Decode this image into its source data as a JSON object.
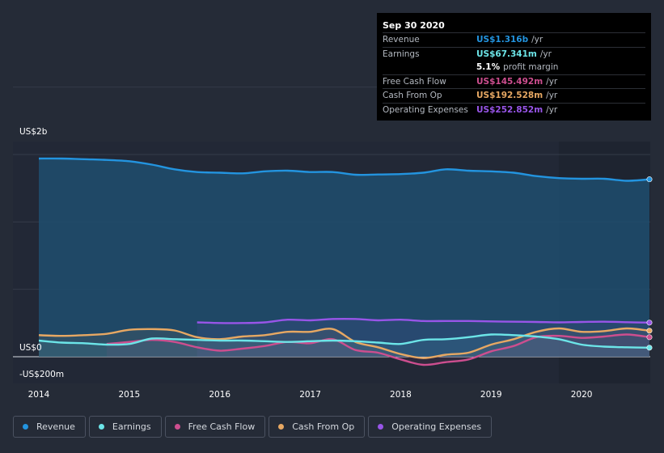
{
  "tooltip": {
    "date": "Sep 30 2020",
    "rows": [
      {
        "label": "Revenue",
        "value": "US$1.316b",
        "unit": "/yr",
        "color": "#2394df"
      },
      {
        "label": "Earnings",
        "value": "US$67.341m",
        "unit": "/yr",
        "color": "#6ce5e8"
      },
      {
        "label": "Free Cash Flow",
        "value": "US$145.492m",
        "unit": "/yr",
        "color": "#cd4e8f"
      },
      {
        "label": "Cash From Op",
        "value": "US$192.528m",
        "unit": "/yr",
        "color": "#e7a863"
      },
      {
        "label": "Operating Expenses",
        "value": "US$252.852m",
        "unit": "/yr",
        "color": "#9855e8"
      }
    ],
    "margin_value": "5.1%",
    "margin_label": "profit margin"
  },
  "legend": [
    {
      "label": "Revenue",
      "color": "#2394df"
    },
    {
      "label": "Earnings",
      "color": "#6ce5e8"
    },
    {
      "label": "Free Cash Flow",
      "color": "#cd4e8f"
    },
    {
      "label": "Cash From Op",
      "color": "#e7a863"
    },
    {
      "label": "Operating Expenses",
      "color": "#9855e8"
    }
  ],
  "chart_data": {
    "type": "area",
    "y_tick_labels": [
      {
        "value": 2000,
        "label": "US$2b"
      },
      {
        "value": 0,
        "label": "US$0"
      },
      {
        "value": -200,
        "label": "-US$200m"
      }
    ],
    "ylim": [
      -200,
      2000
    ],
    "xlim": [
      2013.9,
      2020.75
    ],
    "x_ticks": [
      2014,
      2015,
      2016,
      2017,
      2018,
      2019,
      2020
    ],
    "grid": true,
    "forecast_shading_start": 2019.75,
    "series": [
      {
        "name": "Revenue",
        "color": "#2394df",
        "filled": true,
        "x": [
          2014.0,
          2014.25,
          2014.5,
          2014.75,
          2015.0,
          2015.25,
          2015.5,
          2015.75,
          2016.0,
          2016.25,
          2016.5,
          2016.75,
          2017.0,
          2017.25,
          2017.5,
          2017.75,
          2018.0,
          2018.25,
          2018.5,
          2018.75,
          2019.0,
          2019.25,
          2019.5,
          2019.75,
          2020.0,
          2020.25,
          2020.5,
          2020.75
        ],
        "y": [
          1470,
          1470,
          1465,
          1460,
          1450,
          1425,
          1390,
          1370,
          1365,
          1360,
          1375,
          1380,
          1370,
          1370,
          1350,
          1352,
          1355,
          1365,
          1390,
          1380,
          1375,
          1365,
          1340,
          1325,
          1320,
          1320,
          1305,
          1316
        ]
      },
      {
        "name": "Earnings",
        "color": "#6ce5e8",
        "filled": false,
        "x": [
          2014.0,
          2014.25,
          2014.5,
          2014.75,
          2015.0,
          2015.25,
          2015.5,
          2015.75,
          2016.0,
          2016.25,
          2016.5,
          2016.75,
          2017.0,
          2017.25,
          2017.5,
          2017.75,
          2018.0,
          2018.25,
          2018.5,
          2018.75,
          2019.0,
          2019.25,
          2019.5,
          2019.75,
          2020.0,
          2020.25,
          2020.5,
          2020.75
        ],
        "y": [
          120,
          105,
          100,
          90,
          95,
          135,
          130,
          125,
          120,
          120,
          115,
          110,
          115,
          120,
          115,
          105,
          95,
          125,
          130,
          145,
          165,
          160,
          150,
          130,
          90,
          75,
          70,
          67
        ]
      },
      {
        "name": "Free Cash Flow",
        "color": "#cd4e8f",
        "filled": false,
        "x": [
          2014.75,
          2015.0,
          2015.25,
          2015.5,
          2015.75,
          2016.0,
          2016.25,
          2016.5,
          2016.75,
          2017.0,
          2017.25,
          2017.5,
          2017.75,
          2018.0,
          2018.25,
          2018.5,
          2018.75,
          2019.0,
          2019.25,
          2019.5,
          2019.75,
          2020.0,
          2020.25,
          2020.5,
          2020.75
        ],
        "y": [
          95,
          110,
          125,
          110,
          70,
          45,
          60,
          80,
          110,
          100,
          130,
          50,
          30,
          -20,
          -60,
          -40,
          -20,
          40,
          80,
          145,
          155,
          140,
          150,
          165,
          145
        ]
      },
      {
        "name": "Cash From Op",
        "color": "#e7a863",
        "filled": false,
        "x": [
          2014.0,
          2014.25,
          2014.5,
          2014.75,
          2015.0,
          2015.25,
          2015.5,
          2015.75,
          2016.0,
          2016.25,
          2016.5,
          2016.75,
          2017.0,
          2017.25,
          2017.5,
          2017.75,
          2018.0,
          2018.25,
          2018.5,
          2018.75,
          2019.0,
          2019.25,
          2019.5,
          2019.75,
          2020.0,
          2020.25,
          2020.5,
          2020.75
        ],
        "y": [
          160,
          155,
          160,
          170,
          200,
          205,
          195,
          145,
          130,
          150,
          160,
          185,
          185,
          205,
          110,
          70,
          20,
          -10,
          15,
          30,
          90,
          130,
          185,
          210,
          185,
          190,
          210,
          193
        ]
      },
      {
        "name": "Operating Expenses",
        "color": "#9855e8",
        "filled": false,
        "x": [
          2015.75,
          2016.0,
          2016.25,
          2016.5,
          2016.75,
          2017.0,
          2017.25,
          2017.5,
          2017.75,
          2018.0,
          2018.25,
          2018.5,
          2018.75,
          2019.0,
          2019.25,
          2019.5,
          2019.75,
          2020.0,
          2020.25,
          2020.5,
          2020.75
        ],
        "y": [
          255,
          250,
          250,
          255,
          275,
          270,
          280,
          280,
          270,
          275,
          265,
          265,
          265,
          262,
          260,
          258,
          255,
          258,
          260,
          256,
          253
        ]
      }
    ]
  }
}
